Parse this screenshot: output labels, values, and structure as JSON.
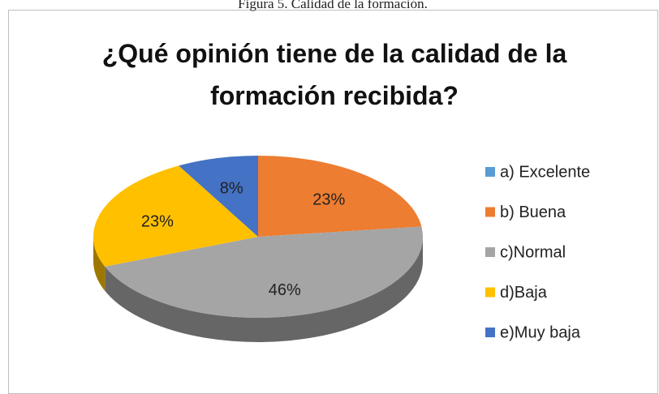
{
  "chart_data": {
    "type": "pie3d",
    "caption": "Figura 5. Calidad de la formación.",
    "title": "¿Qué opinión tiene de la calidad de la formación recibida?",
    "categories": [
      "a) Excelente",
      "b) Buena",
      "c)Normal",
      "d)Baja",
      "e)Muy baja"
    ],
    "values": [
      0,
      23,
      46,
      23,
      8
    ],
    "value_labels": [
      null,
      "23%",
      "46%",
      "23%",
      "8%"
    ],
    "colors": [
      "#5b9bd5",
      "#ed7d31",
      "#a5a5a5",
      "#ffc000",
      "#4472c4"
    ],
    "legend": "right"
  }
}
